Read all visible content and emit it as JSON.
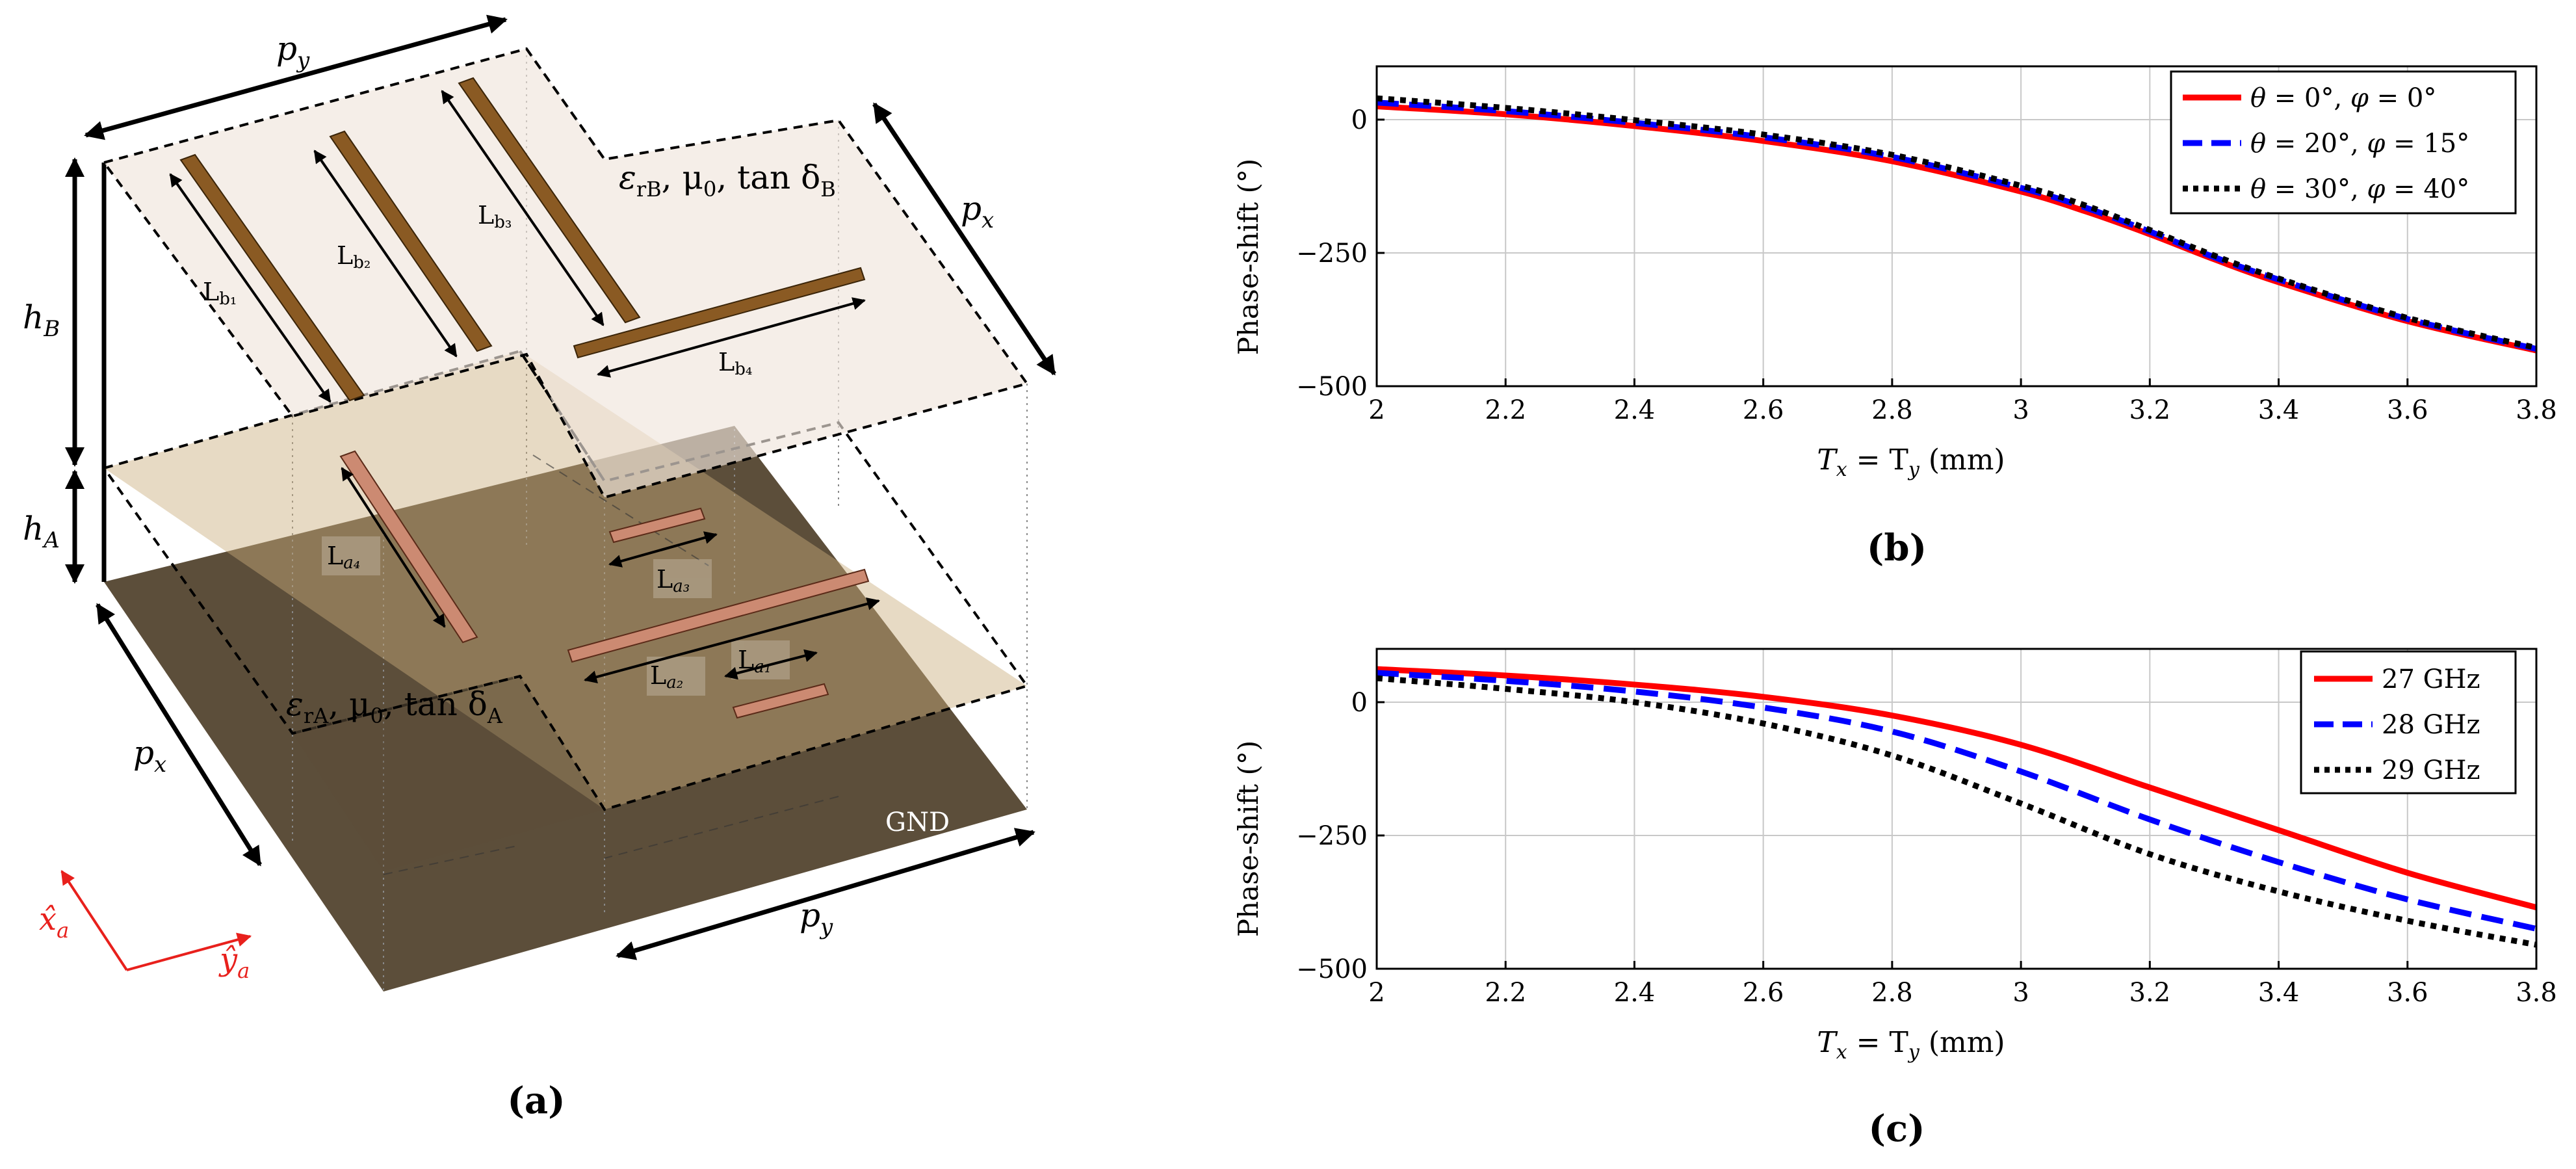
{
  "panel_a": {
    "caption": "(a)",
    "labels": {
      "py_top": "p",
      "py_top_sub": "y",
      "px_right": "p",
      "px_right_sub": "x",
      "px_left": "p",
      "px_left_sub": "x",
      "py_bottom": "p",
      "py_bottom_sub": "y",
      "hB": "h",
      "hB_sub": "B",
      "hA": "h",
      "hA_sub": "A",
      "Lb1": "L",
      "Lb1_sub": "b₁",
      "Lb2": "L",
      "Lb2_sub": "b₂",
      "Lb3": "L",
      "Lb3_sub": "b₃",
      "Lb4": "L",
      "Lb4_sub": "b₄",
      "La1": "L",
      "La1_sub": "a₁",
      "La2": "L",
      "La2_sub": "a₂",
      "La3": "L",
      "La3_sub": "a₃",
      "La4": "L",
      "La4_sub": "a₄",
      "matB": "ε",
      "matB_sub": "rB",
      "matB_rest": ", μ",
      "matB_rest_sub": "0",
      "matB_tail": ", tan δ",
      "matB_tail_sub": "B",
      "matA": "ε",
      "matA_sub": "rA",
      "matA_rest": ", μ",
      "matA_rest_sub": "0",
      "matA_tail": ", tan δ",
      "matA_tail_sub": "A",
      "gnd": "GND",
      "axis_x": "x̂",
      "axis_x_sub": "a",
      "axis_y": "ŷ",
      "axis_y_sub": "a"
    },
    "colors": {
      "gnd": "#5c4e3a",
      "layerA": "#e6d3b3",
      "layerB": "#f3ece6",
      "strip_top": "#8a5a23",
      "strip_bottom": "#cc8a72",
      "axes": "#e8201c"
    }
  },
  "panel_b": {
    "caption": "(b)",
    "ylabel": "Phase-shift (°)",
    "xlabel_parts": [
      "T",
      "x",
      " = T",
      "y",
      " (mm)"
    ],
    "legend": [
      {
        "pre": "θ",
        "mid": " = 0°, ",
        "phi": "φ",
        "post": " = 0°"
      },
      {
        "pre": "θ",
        "mid": " = 20°, ",
        "phi": "φ",
        "post": " = 15°"
      },
      {
        "pre": "θ",
        "mid": " = 30°, ",
        "phi": "φ",
        "post": " = 40°"
      }
    ]
  },
  "panel_c": {
    "caption": "(c)",
    "ylabel": "Phase-shift (°)",
    "xlabel_parts": [
      "T",
      "x",
      " = T",
      "y",
      " (mm)"
    ],
    "legend": [
      {
        "text": "27 GHz"
      },
      {
        "text": "28 GHz"
      },
      {
        "text": "29 GHz"
      }
    ]
  },
  "chart_data": [
    {
      "type": "line",
      "xlabel": "Tx = Ty (mm)",
      "ylabel": "Phase-shift (°)",
      "xlim": [
        2,
        3.8
      ],
      "ylim": [
        -500,
        100
      ],
      "xticks": [
        2,
        2.2,
        2.4,
        2.6,
        2.8,
        3,
        3.2,
        3.4,
        3.6,
        3.8
      ],
      "xtick_labels": [
        "2",
        "2.2",
        "2.4",
        "2.6",
        "2.8",
        "3",
        "3.2",
        "3.4",
        "3.6",
        "3.8"
      ],
      "yticks": [
        0,
        -250,
        -500
      ],
      "ytick_labels": [
        "0",
        "−250",
        "−500"
      ],
      "grid": true,
      "legend_position": "top-right",
      "x": [
        2.0,
        2.2,
        2.4,
        2.6,
        2.8,
        3.0,
        3.1,
        3.2,
        3.3,
        3.4,
        3.6,
        3.8
      ],
      "series": [
        {
          "name": "θ = 0°, φ = 0°",
          "color": "#ff0000",
          "dash": "solid",
          "values": [
            25,
            10,
            -12,
            -40,
            -78,
            -135,
            -172,
            -215,
            -262,
            -305,
            -378,
            -433
          ]
        },
        {
          "name": "θ = 20°, φ = 15°",
          "color": "#0000ff",
          "dash": "dashed",
          "values": [
            32,
            16,
            -6,
            -33,
            -70,
            -128,
            -165,
            -210,
            -258,
            -300,
            -374,
            -430
          ]
        },
        {
          "name": "θ = 30°, φ = 40°",
          "color": "#000000",
          "dash": "dotted",
          "values": [
            40,
            22,
            -1,
            -28,
            -66,
            -124,
            -161,
            -207,
            -255,
            -298,
            -372,
            -428
          ]
        }
      ]
    },
    {
      "type": "line",
      "xlabel": "Tx = Ty (mm)",
      "ylabel": "Phase-shift (°)",
      "xlim": [
        2,
        3.8
      ],
      "ylim": [
        -500,
        100
      ],
      "xticks": [
        2,
        2.2,
        2.4,
        2.6,
        2.8,
        3,
        3.2,
        3.4,
        3.6,
        3.8
      ],
      "xtick_labels": [
        "2",
        "2.2",
        "2.4",
        "2.6",
        "2.8",
        "3",
        "3.2",
        "3.4",
        "3.6",
        "3.8"
      ],
      "yticks": [
        0,
        -250,
        -500
      ],
      "ytick_labels": [
        "0",
        "−250",
        "−500"
      ],
      "grid": true,
      "legend_position": "top-right",
      "x": [
        2.0,
        2.2,
        2.4,
        2.6,
        2.8,
        3.0,
        3.2,
        3.4,
        3.6,
        3.8
      ],
      "series": [
        {
          "name": "27 GHz",
          "color": "#ff0000",
          "dash": "solid",
          "values": [
            62,
            50,
            33,
            10,
            -25,
            -80,
            -160,
            -240,
            -320,
            -385
          ]
        },
        {
          "name": "28 GHz",
          "color": "#0000ff",
          "dash": "dashed",
          "values": [
            55,
            40,
            20,
            -10,
            -55,
            -130,
            -220,
            -300,
            -370,
            -425
          ]
        },
        {
          "name": "29 GHz",
          "color": "#000000",
          "dash": "dotted",
          "values": [
            45,
            25,
            0,
            -40,
            -100,
            -190,
            -285,
            -355,
            -410,
            -455
          ]
        }
      ]
    }
  ]
}
